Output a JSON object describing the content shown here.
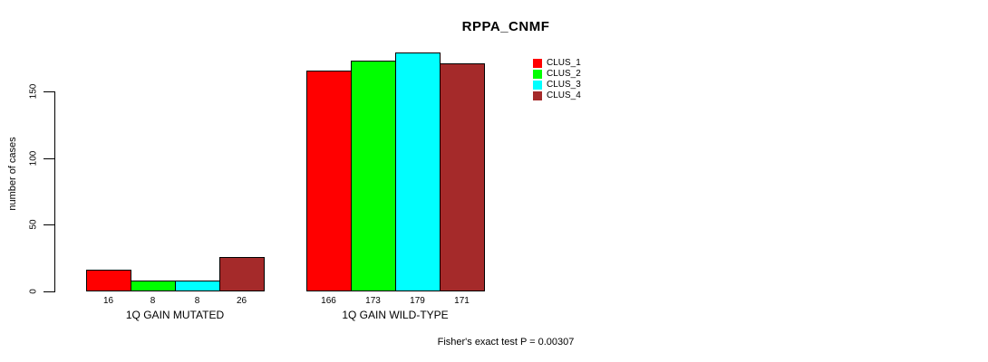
{
  "chart_data": {
    "type": "bar",
    "title": "RPPA_CNMF",
    "ylabel": "number of cases",
    "xlabel": "",
    "categories": [
      "1Q GAIN MUTATED",
      "1Q GAIN WILD-TYPE"
    ],
    "series": [
      {
        "name": "CLUS_1",
        "color": "#FF0000",
        "values": [
          16,
          166
        ]
      },
      {
        "name": "CLUS_2",
        "color": "#00FF00",
        "values": [
          8,
          173
        ]
      },
      {
        "name": "CLUS_3",
        "color": "#00FFFF",
        "values": [
          8,
          179
        ]
      },
      {
        "name": "CLUS_4",
        "color": "#A52A2A",
        "values": [
          26,
          171
        ]
      }
    ],
    "bar_value_labels": [
      [
        "16",
        "8",
        "8",
        "26"
      ],
      [
        "166",
        "173",
        "179",
        "171"
      ]
    ],
    "yticks": [
      "0",
      "50",
      "100",
      "150"
    ],
    "ylim": [
      0,
      185
    ],
    "grid": false,
    "legend_position": "inside-top-right",
    "annotation": "Fisher's exact test P = 0.00307"
  }
}
